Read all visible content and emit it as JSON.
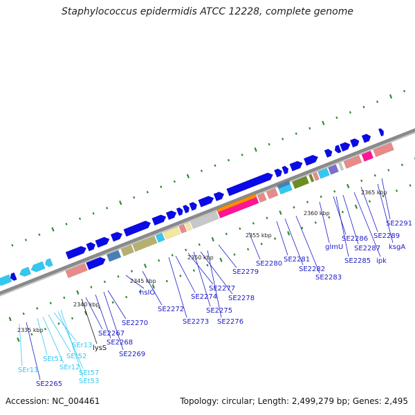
{
  "title": "Staphylococcus epidermidis ATCC 12228, complete genome",
  "accession": "Accession: NC_004461",
  "topology": "Topology: circular; Length: 2,499,279 bp; Genes: 2,495",
  "colors": {
    "backbone": "#8a8a8a",
    "tick": "#2e8b2e",
    "gene_blue": "#0a0ae6",
    "gene_cyan": "#33c8f0",
    "trna_label": "#33c8f0",
    "gene_label": "#1a1ac8",
    "pink": "#e98a8a",
    "magenta": "#ff1493",
    "khaki": "#b5b070",
    "olive": "#6b8e23",
    "gray": "#c8c8c8",
    "orange": "#ff8c00",
    "yellow": "#f5e6a0",
    "steel": "#4a7fb5",
    "purple": "#7a6fcf"
  },
  "scale_labels": [
    "2335 kbp",
    "2340 kbp",
    "2345 kbp",
    "2350 kbp",
    "2355 kbp",
    "2360 kbp",
    "2365 kbp"
  ],
  "gene_labels": [
    {
      "text": "SEr11",
      "kind": "rna"
    },
    {
      "text": "SE2265",
      "kind": "cds"
    },
    {
      "text": "SEt51",
      "kind": "rna"
    },
    {
      "text": "SEr12",
      "kind": "rna"
    },
    {
      "text": "SEt52",
      "kind": "rna"
    },
    {
      "text": "SEr13",
      "kind": "rna"
    },
    {
      "text": "SEt57",
      "kind": "rna"
    },
    {
      "text": "SEt53",
      "kind": "rna"
    },
    {
      "text": "lysS",
      "kind": "black"
    },
    {
      "text": "SE2267",
      "kind": "cds"
    },
    {
      "text": "SE2268",
      "kind": "cds"
    },
    {
      "text": "SE2269",
      "kind": "cds"
    },
    {
      "text": "SE2270",
      "kind": "cds"
    },
    {
      "text": "hslO",
      "kind": "cds"
    },
    {
      "text": "SE2272",
      "kind": "cds"
    },
    {
      "text": "SE2273",
      "kind": "cds"
    },
    {
      "text": "SE2274",
      "kind": "cds"
    },
    {
      "text": "SE2277",
      "kind": "cds"
    },
    {
      "text": "SE2275",
      "kind": "cds"
    },
    {
      "text": "SE2278",
      "kind": "cds"
    },
    {
      "text": "SE2276",
      "kind": "cds"
    },
    {
      "text": "SE2279",
      "kind": "cds"
    },
    {
      "text": "SE2280",
      "kind": "cds"
    },
    {
      "text": "SE2281",
      "kind": "cds"
    },
    {
      "text": "SE2282",
      "kind": "cds"
    },
    {
      "text": "SE2283",
      "kind": "cds"
    },
    {
      "text": "glmU",
      "kind": "cds"
    },
    {
      "text": "SE2286",
      "kind": "cds"
    },
    {
      "text": "SE2285",
      "kind": "cds"
    },
    {
      "text": "SE2287",
      "kind": "cds"
    },
    {
      "text": "ipk",
      "kind": "cds"
    },
    {
      "text": "SE2289",
      "kind": "cds"
    },
    {
      "text": "ksgA",
      "kind": "cds"
    },
    {
      "text": "SE2291",
      "kind": "cds"
    }
  ]
}
